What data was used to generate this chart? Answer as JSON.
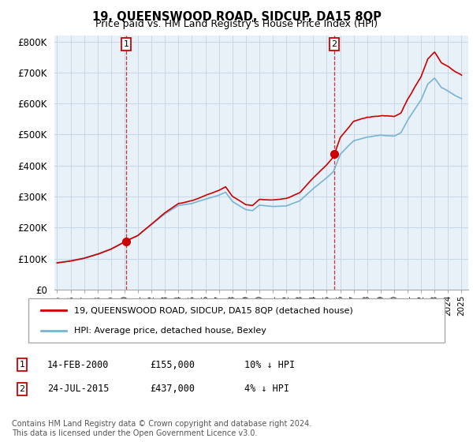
{
  "title": "19, QUEENSWOOD ROAD, SIDCUP, DA15 8QP",
  "subtitle": "Price paid vs. HM Land Registry's House Price Index (HPI)",
  "ylim": [
    0,
    820000
  ],
  "yticks": [
    0,
    100000,
    200000,
    300000,
    400000,
    500000,
    600000,
    700000,
    800000
  ],
  "ytick_labels": [
    "£0",
    "£100K",
    "£200K",
    "£300K",
    "£400K",
    "£500K",
    "£600K",
    "£700K",
    "£800K"
  ],
  "hpi_color": "#7ab3d4",
  "price_color": "#cc0000",
  "marker_color": "#cc0000",
  "dashed_color": "#cc0000",
  "chart_bg": "#e8f0f8",
  "sale1_year": 2000.12,
  "sale1_price": 155000,
  "sale2_year": 2015.56,
  "sale2_price": 437000,
  "legend_label1": "19, QUEENSWOOD ROAD, SIDCUP, DA15 8QP (detached house)",
  "legend_label2": "HPI: Average price, detached house, Bexley",
  "note1_label": "1",
  "note1_date": "14-FEB-2000",
  "note1_price": "£155,000",
  "note1_hpi": "10% ↓ HPI",
  "note2_label": "2",
  "note2_date": "24-JUL-2015",
  "note2_price": "£437,000",
  "note2_hpi": "4% ↓ HPI",
  "footer": "Contains HM Land Registry data © Crown copyright and database right 2024.\nThis data is licensed under the Open Government Licence v3.0.",
  "bg_color": "#ffffff",
  "grid_color": "#c8d8e8"
}
